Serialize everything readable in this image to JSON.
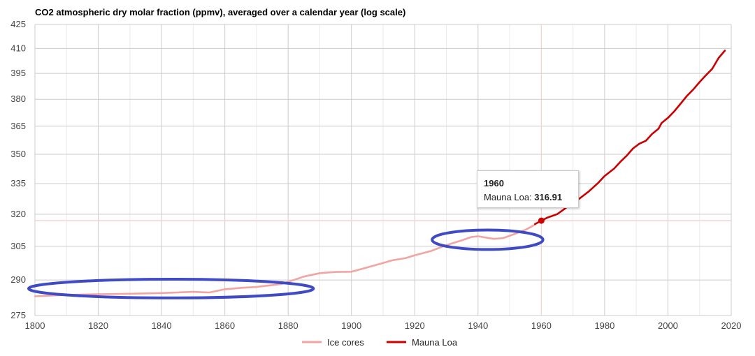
{
  "chart_data": {
    "type": "line",
    "title": "CO2 atmospheric dry molar fraction (ppmv), averaged over a calendar year (log scale)",
    "xlabel": "",
    "ylabel": "",
    "xlim": [
      1800,
      2020
    ],
    "ylim": [
      275,
      425
    ],
    "y_scale": "log",
    "grid": true,
    "legend_position": "bottom",
    "x_ticks": [
      "1800",
      "1820",
      "1840",
      "1860",
      "1880",
      "1900",
      "1920",
      "1940",
      "1960",
      "1980",
      "2000",
      "2020"
    ],
    "y_ticks": [
      "425",
      "410",
      "395",
      "380",
      "365",
      "350",
      "335",
      "320",
      "305",
      "290",
      "275"
    ],
    "series": [
      {
        "name": "Ice cores",
        "color": "#f4a3a3",
        "points": [
          [
            1800,
            283.0
          ],
          [
            1810,
            283.6
          ],
          [
            1820,
            283.9
          ],
          [
            1830,
            284.1
          ],
          [
            1840,
            284.4
          ],
          [
            1850,
            284.9
          ],
          [
            1855,
            284.6
          ],
          [
            1860,
            286.0
          ],
          [
            1865,
            286.6
          ],
          [
            1870,
            287.0
          ],
          [
            1878,
            288.3
          ],
          [
            1885,
            291.5
          ],
          [
            1890,
            293.0
          ],
          [
            1895,
            293.5
          ],
          [
            1900,
            293.6
          ],
          [
            1905,
            295.5
          ],
          [
            1910,
            297.5
          ],
          [
            1913,
            298.7
          ],
          [
            1917,
            299.6
          ],
          [
            1920,
            300.9
          ],
          [
            1925,
            302.8
          ],
          [
            1930,
            305.5
          ],
          [
            1935,
            307.8
          ],
          [
            1938,
            309.3
          ],
          [
            1940,
            309.6
          ],
          [
            1945,
            308.4
          ],
          [
            1948,
            308.8
          ],
          [
            1952,
            310.9
          ],
          [
            1955,
            312.6
          ],
          [
            1958,
            315.0
          ]
        ]
      },
      {
        "name": "Mauna Loa",
        "color": "#cc0000",
        "points": [
          [
            1958,
            315.3
          ],
          [
            1960,
            316.91
          ],
          [
            1962,
            318.4
          ],
          [
            1965,
            320.0
          ],
          [
            1967,
            322.2
          ],
          [
            1970,
            325.7
          ],
          [
            1972,
            327.5
          ],
          [
            1975,
            331.1
          ],
          [
            1978,
            335.4
          ],
          [
            1980,
            338.8
          ],
          [
            1983,
            342.6
          ],
          [
            1985,
            346.1
          ],
          [
            1987,
            349.3
          ],
          [
            1989,
            353.1
          ],
          [
            1991,
            355.6
          ],
          [
            1993,
            357.1
          ],
          [
            1995,
            360.8
          ],
          [
            1997,
            363.6
          ],
          [
            1998,
            366.7
          ],
          [
            2000,
            369.6
          ],
          [
            2002,
            373.2
          ],
          [
            2004,
            377.5
          ],
          [
            2006,
            381.9
          ],
          [
            2008,
            385.6
          ],
          [
            2010,
            389.9
          ],
          [
            2012,
            393.9
          ],
          [
            2014,
            397.7
          ],
          [
            2016,
            404.2
          ],
          [
            2018,
            408.7
          ]
        ]
      }
    ],
    "highlight_line_value": 316.91,
    "highlight_point": {
      "series": "Mauna Loa",
      "x": 1960,
      "y": 316.91
    },
    "annotations": [
      {
        "shape": "ellipse",
        "color": "#3f4bc4",
        "x_center": 1843,
        "y_center": 286.3,
        "x_span": 90,
        "y_span": 8
      },
      {
        "shape": "ellipse",
        "color": "#3f4bc4",
        "x_center": 1943,
        "y_center": 308.0,
        "x_span": 35,
        "y_span": 9
      }
    ]
  },
  "tooltip": {
    "year": "1960",
    "label": "Mauna Loa: ",
    "value": "316.91"
  },
  "legend": [
    {
      "label": "Ice cores",
      "color": "#f4a3a3"
    },
    {
      "label": "Mauna Loa",
      "color": "#cc0000"
    }
  ]
}
